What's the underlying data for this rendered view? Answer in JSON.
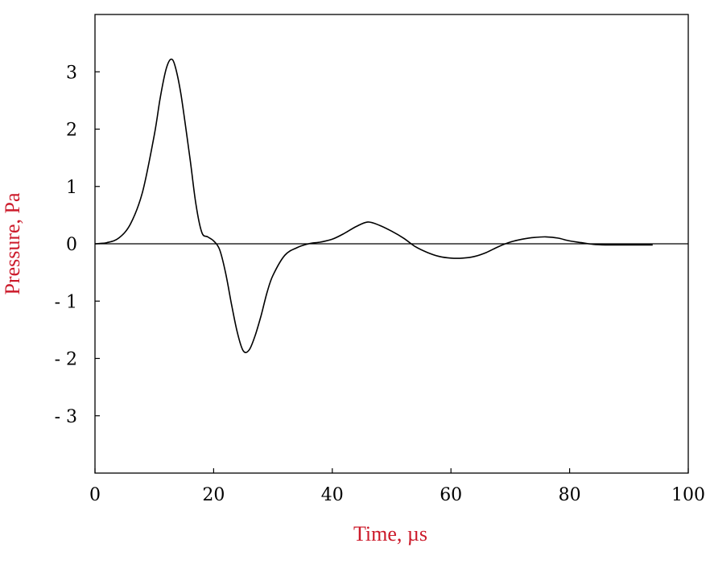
{
  "chart_data": {
    "type": "line",
    "title": "",
    "xlabel": "Time, µs",
    "ylabel": "Pressure, Pa",
    "xlim": [
      0,
      100
    ],
    "ylim": [
      -4,
      4
    ],
    "x_ticks": [
      0,
      20,
      40,
      60,
      80,
      100
    ],
    "x_tick_labels": [
      "0",
      "20",
      "40",
      "60",
      "80",
      "100"
    ],
    "y_ticks": [
      3,
      2,
      1,
      0,
      -1,
      -2,
      -3
    ],
    "y_tick_labels": [
      "3",
      "2",
      "1",
      "0",
      "- 1",
      "- 2",
      "- 3"
    ],
    "grid": false,
    "zero_line": true,
    "series": [
      {
        "x": [
          0,
          2,
          4,
          6,
          8,
          10,
          11,
          12,
          12.8,
          13.5,
          14.5,
          16,
          17,
          18,
          19,
          20,
          21,
          22,
          23,
          24,
          25,
          26,
          27,
          28,
          29,
          30,
          32,
          34,
          36,
          38,
          40,
          42,
          44,
          46,
          48,
          50,
          52,
          54,
          56,
          58,
          60,
          62,
          64,
          66,
          68,
          70,
          72,
          74,
          76,
          78,
          80,
          82,
          84,
          86,
          88,
          90,
          94
        ],
        "y": [
          0,
          0.02,
          0.1,
          0.35,
          0.9,
          1.9,
          2.55,
          3.05,
          3.22,
          3.1,
          2.6,
          1.5,
          0.7,
          0.2,
          0.12,
          0.05,
          -0.1,
          -0.5,
          -1.05,
          -1.55,
          -1.87,
          -1.85,
          -1.6,
          -1.25,
          -0.85,
          -0.55,
          -0.2,
          -0.07,
          0,
          0.03,
          0.08,
          0.18,
          0.3,
          0.38,
          0.32,
          0.22,
          0.1,
          -0.05,
          -0.15,
          -0.22,
          -0.25,
          -0.25,
          -0.22,
          -0.15,
          -0.05,
          0.03,
          0.08,
          0.11,
          0.12,
          0.1,
          0.05,
          0.02,
          -0.01,
          -0.02,
          -0.02,
          -0.02,
          -0.02
        ]
      }
    ],
    "line_color": "#000000",
    "axis_label_color": "#cc1a2a"
  }
}
